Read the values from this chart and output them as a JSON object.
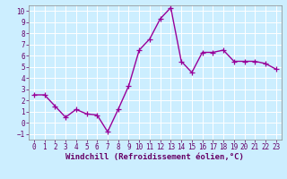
{
  "x": [
    0,
    1,
    2,
    3,
    4,
    5,
    6,
    7,
    8,
    9,
    10,
    11,
    12,
    13,
    14,
    15,
    16,
    17,
    18,
    19,
    20,
    21,
    22,
    23
  ],
  "y": [
    2.5,
    2.5,
    1.5,
    0.5,
    1.2,
    0.8,
    0.7,
    -0.8,
    1.2,
    3.3,
    6.5,
    7.5,
    9.3,
    10.3,
    5.5,
    4.5,
    6.3,
    6.3,
    6.5,
    5.5,
    5.5,
    5.5,
    5.3,
    4.8
  ],
  "line_color": "#990099",
  "marker": "+",
  "marker_size": 4,
  "background_color": "#cceeff",
  "grid_color": "#aaddcc",
  "xlabel": "Windchill (Refroidissement éolien,°C)",
  "xlabel_fontsize": 6.5,
  "ylim": [
    -1.5,
    10.5
  ],
  "xlim": [
    -0.5,
    23.5
  ],
  "yticks": [
    -1,
    0,
    1,
    2,
    3,
    4,
    5,
    6,
    7,
    8,
    9,
    10
  ],
  "xticks": [
    0,
    1,
    2,
    3,
    4,
    5,
    6,
    7,
    8,
    9,
    10,
    11,
    12,
    13,
    14,
    15,
    16,
    17,
    18,
    19,
    20,
    21,
    22,
    23
  ],
  "tick_fontsize": 5.5,
  "line_width": 1.0,
  "text_color": "#660066"
}
